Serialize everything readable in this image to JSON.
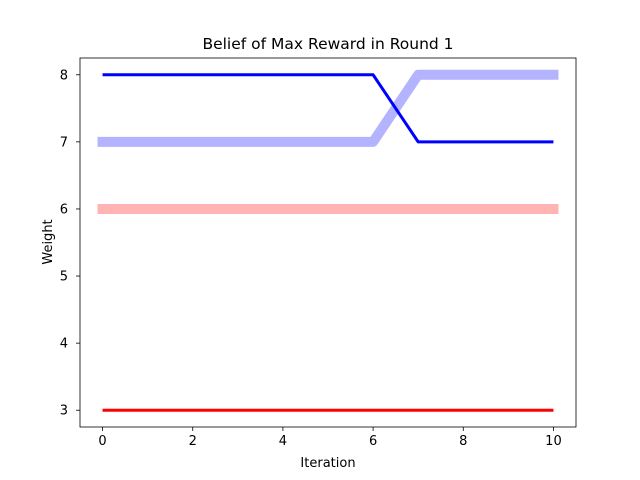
{
  "chart_data": {
    "type": "line",
    "title": "Belief of Max Reward in Round 1",
    "xlabel": "Iteration",
    "ylabel": "Weight",
    "xlim": [
      -0.5,
      10.5
    ],
    "ylim": [
      2.75,
      8.25
    ],
    "xticks": [
      0,
      2,
      4,
      6,
      8,
      10
    ],
    "yticks": [
      3,
      4,
      5,
      6,
      7,
      8
    ],
    "grid": false,
    "series": [
      {
        "color": "#b3b3ff",
        "style": "thick",
        "x": [
          0,
          1,
          2,
          3,
          4,
          5,
          6,
          7,
          8,
          9,
          10
        ],
        "y": [
          7,
          7,
          7,
          7,
          7,
          7,
          7,
          8,
          8,
          8,
          8
        ]
      },
      {
        "color": "#ffb3b3",
        "style": "thick",
        "x": [
          0,
          1,
          2,
          3,
          4,
          5,
          6,
          7,
          8,
          9,
          10
        ],
        "y": [
          6,
          6,
          6,
          6,
          6,
          6,
          6,
          6,
          6,
          6,
          6
        ]
      },
      {
        "color": "#0000ff",
        "style": "thin",
        "x": [
          0,
          1,
          2,
          3,
          4,
          5,
          6,
          7,
          8,
          9,
          10
        ],
        "y": [
          8,
          8,
          8,
          8,
          8,
          8,
          8,
          7,
          7,
          7,
          7
        ]
      },
      {
        "color": "#ff0000",
        "style": "thin",
        "x": [
          0,
          1,
          2,
          3,
          4,
          5,
          6,
          7,
          8,
          9,
          10
        ],
        "y": [
          3,
          3,
          3,
          3,
          3,
          3,
          3,
          3,
          3,
          3,
          3
        ]
      }
    ]
  }
}
